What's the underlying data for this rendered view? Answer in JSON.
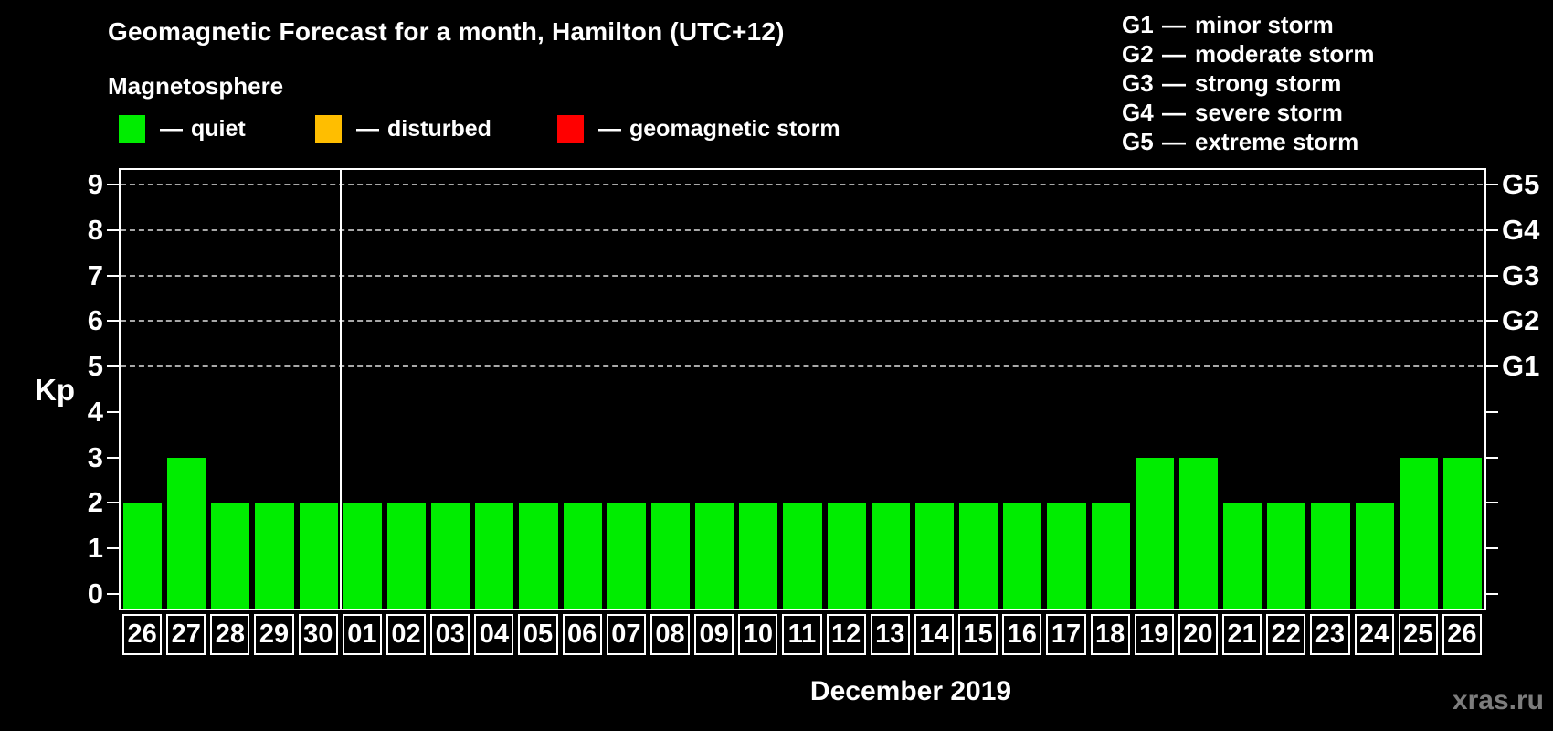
{
  "header": {
    "title": "Geomagnetic Forecast for a month, Hamilton (UTC+12)",
    "subtitle": "Magnetosphere"
  },
  "legend": {
    "dash": "—",
    "items": [
      {
        "label": "quiet",
        "color": "#00ed00"
      },
      {
        "label": "disturbed",
        "color": "#ffbe00"
      },
      {
        "label": "geomagnetic storm",
        "color": "#ff0000"
      }
    ]
  },
  "storm_scale": [
    {
      "code": "G1",
      "dash": "—",
      "label": "minor storm"
    },
    {
      "code": "G2",
      "dash": "—",
      "label": "moderate storm"
    },
    {
      "code": "G3",
      "dash": "—",
      "label": "strong storm"
    },
    {
      "code": "G4",
      "dash": "—",
      "label": "severe storm"
    },
    {
      "code": "G5",
      "dash": "—",
      "label": "extreme storm"
    }
  ],
  "chart_data": {
    "type": "bar",
    "title": "Geomagnetic Forecast for a month, Hamilton (UTC+12)",
    "ylabel": "Kp",
    "xlabel": "December 2019",
    "categories": [
      "26",
      "27",
      "28",
      "29",
      "30",
      "01",
      "02",
      "03",
      "04",
      "05",
      "06",
      "07",
      "08",
      "09",
      "10",
      "11",
      "12",
      "13",
      "14",
      "15",
      "16",
      "17",
      "18",
      "19",
      "20",
      "21",
      "22",
      "23",
      "24",
      "25",
      "26"
    ],
    "values": [
      2,
      3,
      2,
      2,
      2,
      2,
      2,
      2,
      2,
      2,
      2,
      2,
      2,
      2,
      2,
      2,
      2,
      2,
      2,
      2,
      2,
      2,
      2,
      3,
      3,
      2,
      2,
      2,
      2,
      3,
      3
    ],
    "bar_color": "#00ed00",
    "ylim": [
      0,
      9
    ],
    "yticks": [
      0,
      1,
      2,
      3,
      4,
      5,
      6,
      7,
      8,
      9
    ],
    "gridline_levels": [
      5,
      6,
      7,
      8,
      9
    ],
    "right_axis_labels": [
      {
        "level": 5,
        "label": "G1"
      },
      {
        "level": 6,
        "label": "G2"
      },
      {
        "level": 7,
        "label": "G3"
      },
      {
        "level": 8,
        "label": "G4"
      },
      {
        "level": 9,
        "label": "G5"
      }
    ],
    "month_separator_after_index": 4,
    "grid": "horizontal-dashed",
    "legend_position": "top-left"
  },
  "footer": {
    "month_label": "December 2019",
    "watermark": "xras.ru"
  }
}
